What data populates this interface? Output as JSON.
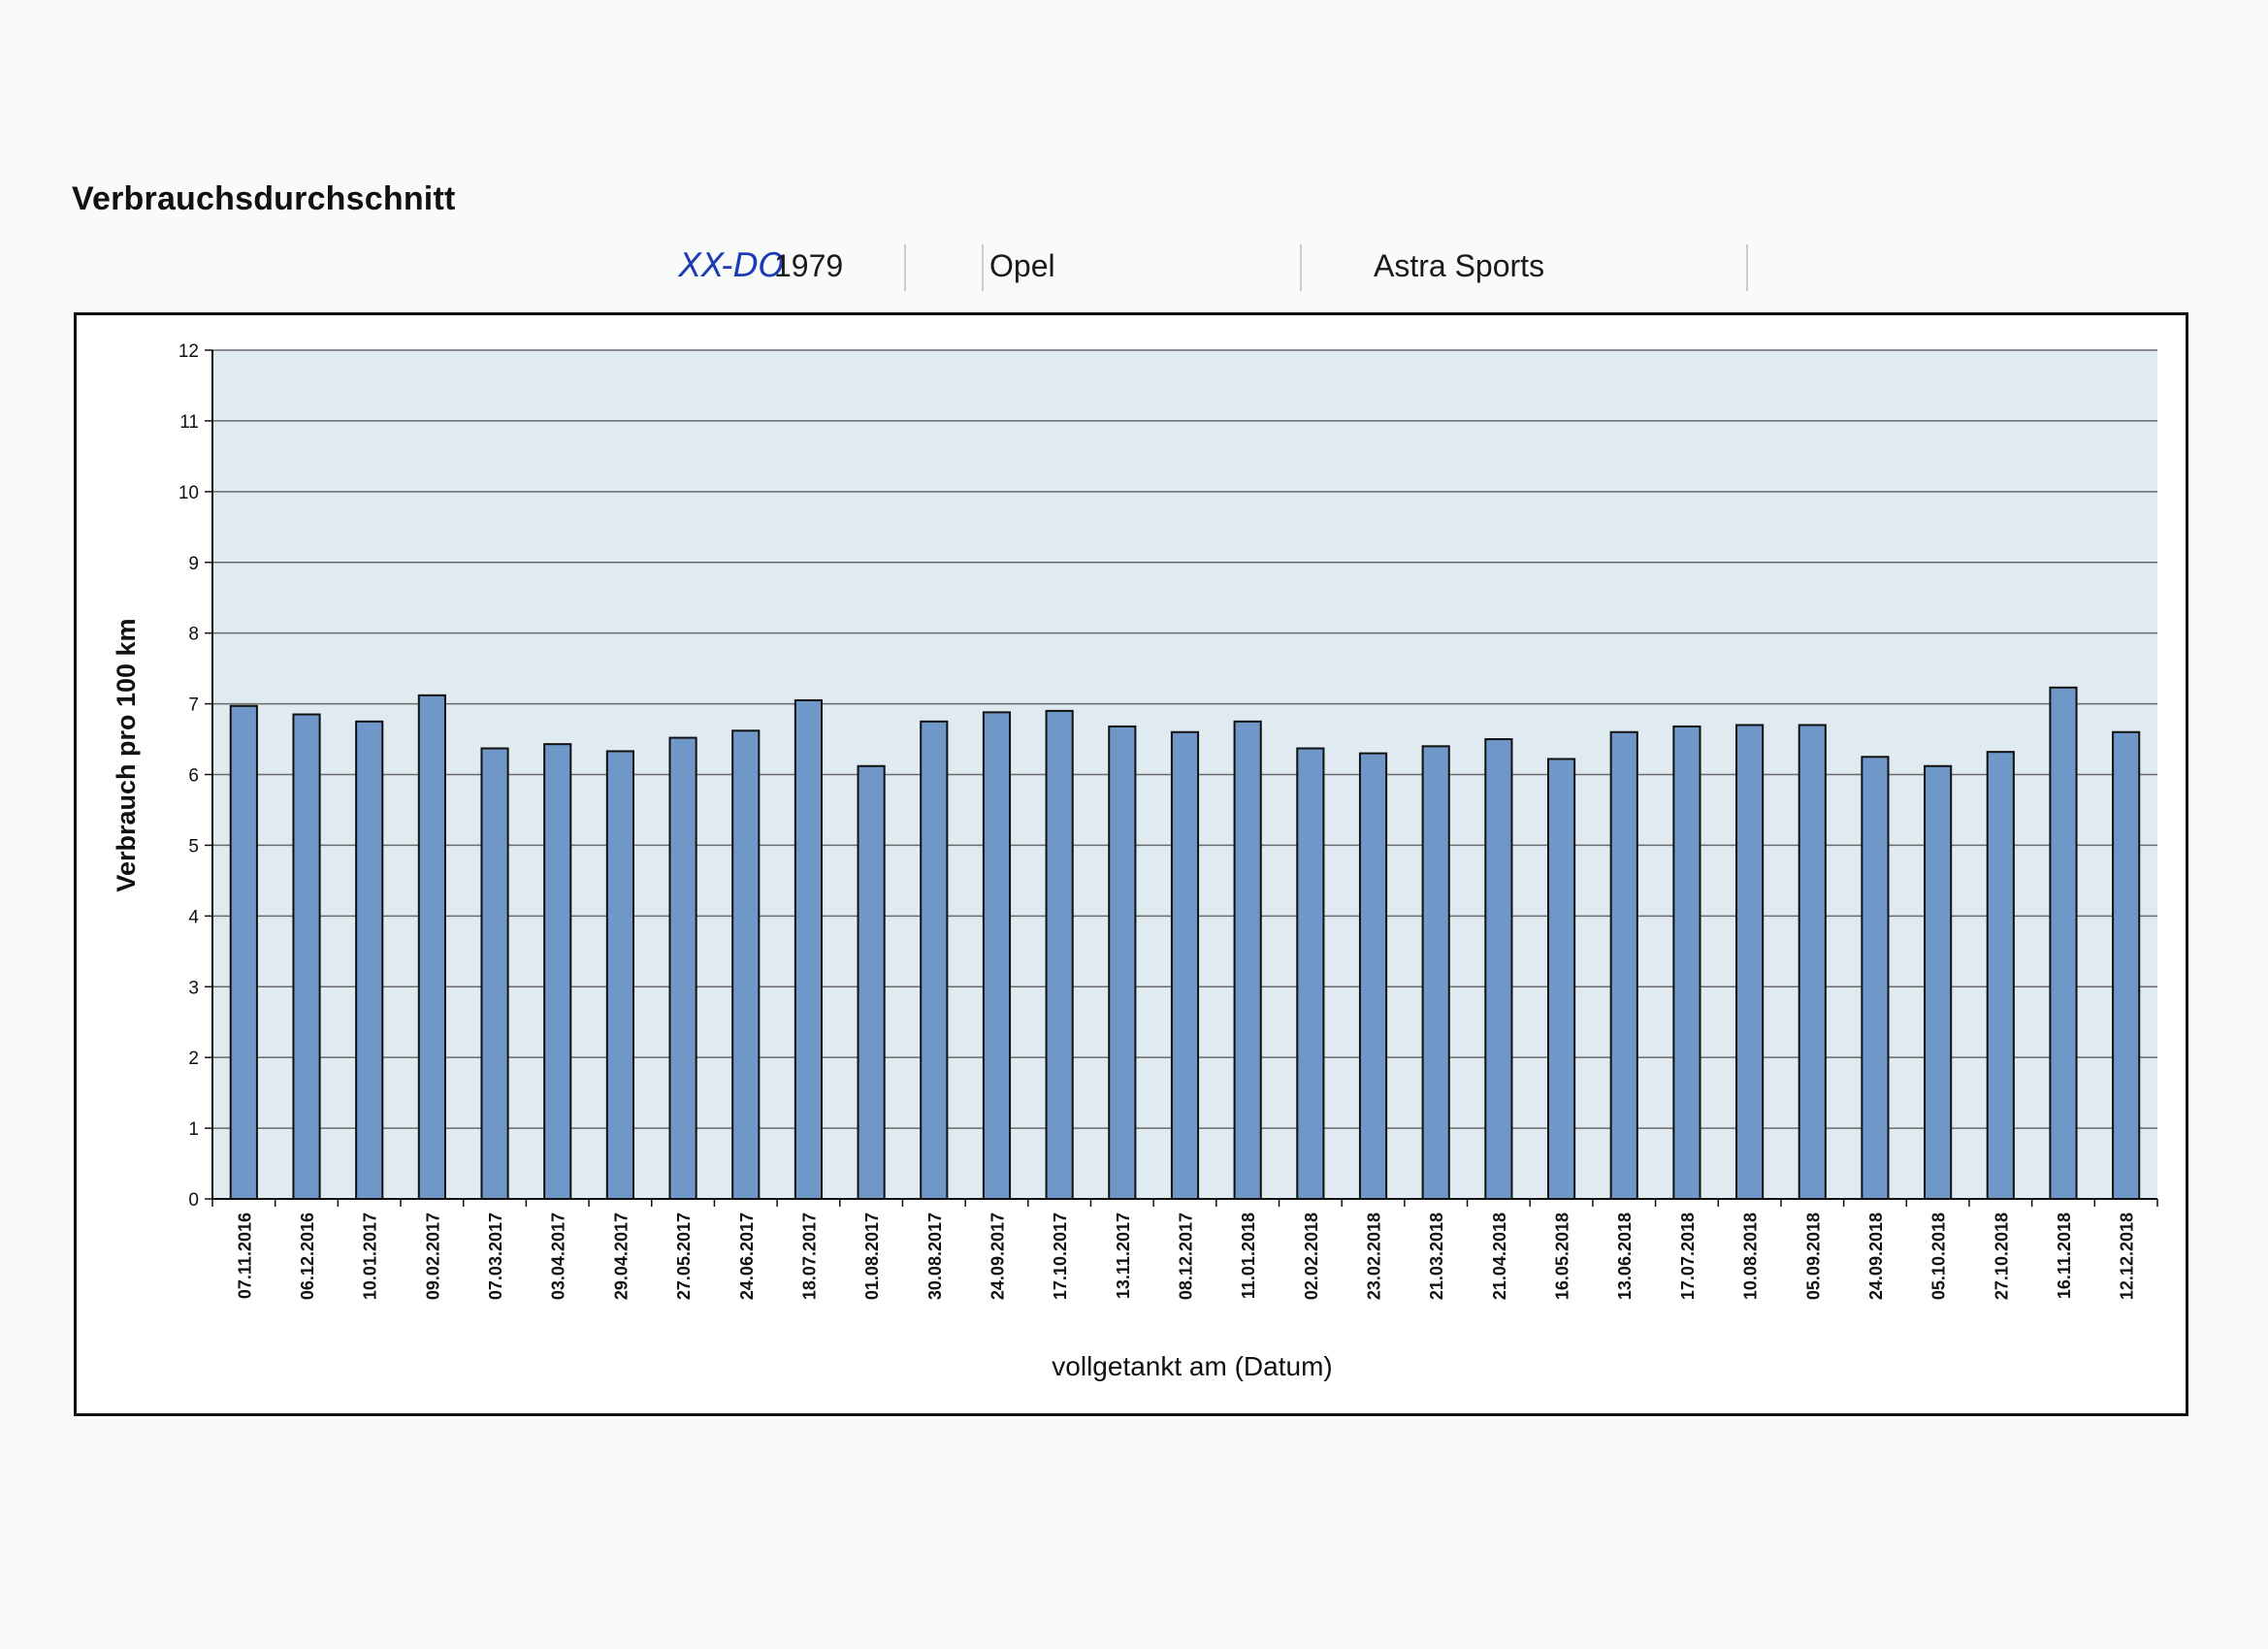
{
  "page": {
    "title": "Verbrauchsdurchschnitt",
    "plate_handwritten": "XX-DO",
    "plate_year": "1979",
    "make": "Opel",
    "model": "Astra Sports"
  },
  "colors": {
    "bar_fill": "#6f97c8",
    "bar_stroke": "#111111",
    "plot_bg": "#dfeaf1",
    "gridline": "#6a6a6a",
    "handwriting": "#1a3db5"
  },
  "chart_data": {
    "type": "bar",
    "title": "",
    "xlabel": "vollgetankt am (Datum)",
    "ylabel": "Verbrauch pro 100 km",
    "ylim": [
      0,
      12
    ],
    "yticks": [
      0,
      1,
      2,
      3,
      4,
      5,
      6,
      7,
      8,
      9,
      10,
      11,
      12
    ],
    "grid": "horizontal",
    "legend": "none",
    "categories": [
      "07.11.2016",
      "06.12.2016",
      "10.01.2017",
      "09.02.2017",
      "07.03.2017",
      "03.04.2017",
      "29.04.2017",
      "27.05.2017",
      "24.06.2017",
      "18.07.2017",
      "01.08.2017",
      "30.08.2017",
      "24.09.2017",
      "17.10.2017",
      "13.11.2017",
      "08.12.2017",
      "11.01.2018",
      "02.02.2018",
      "23.02.2018",
      "21.03.2018",
      "21.04.2018",
      "16.05.2018",
      "13.06.2018",
      "17.07.2018",
      "10.08.2018",
      "05.09.2018",
      "24.09.2018",
      "05.10.2018",
      "27.10.2018",
      "16.11.2018",
      "12.12.2018"
    ],
    "values": [
      6.97,
      6.85,
      6.75,
      7.12,
      6.37,
      6.43,
      6.33,
      6.52,
      6.62,
      7.05,
      6.12,
      6.75,
      6.88,
      6.9,
      6.68,
      6.6,
      6.75,
      6.37,
      6.3,
      6.4,
      6.5,
      6.22,
      6.6,
      6.68,
      6.7,
      6.7,
      6.25,
      6.12,
      6.32,
      7.23,
      6.6
    ]
  }
}
